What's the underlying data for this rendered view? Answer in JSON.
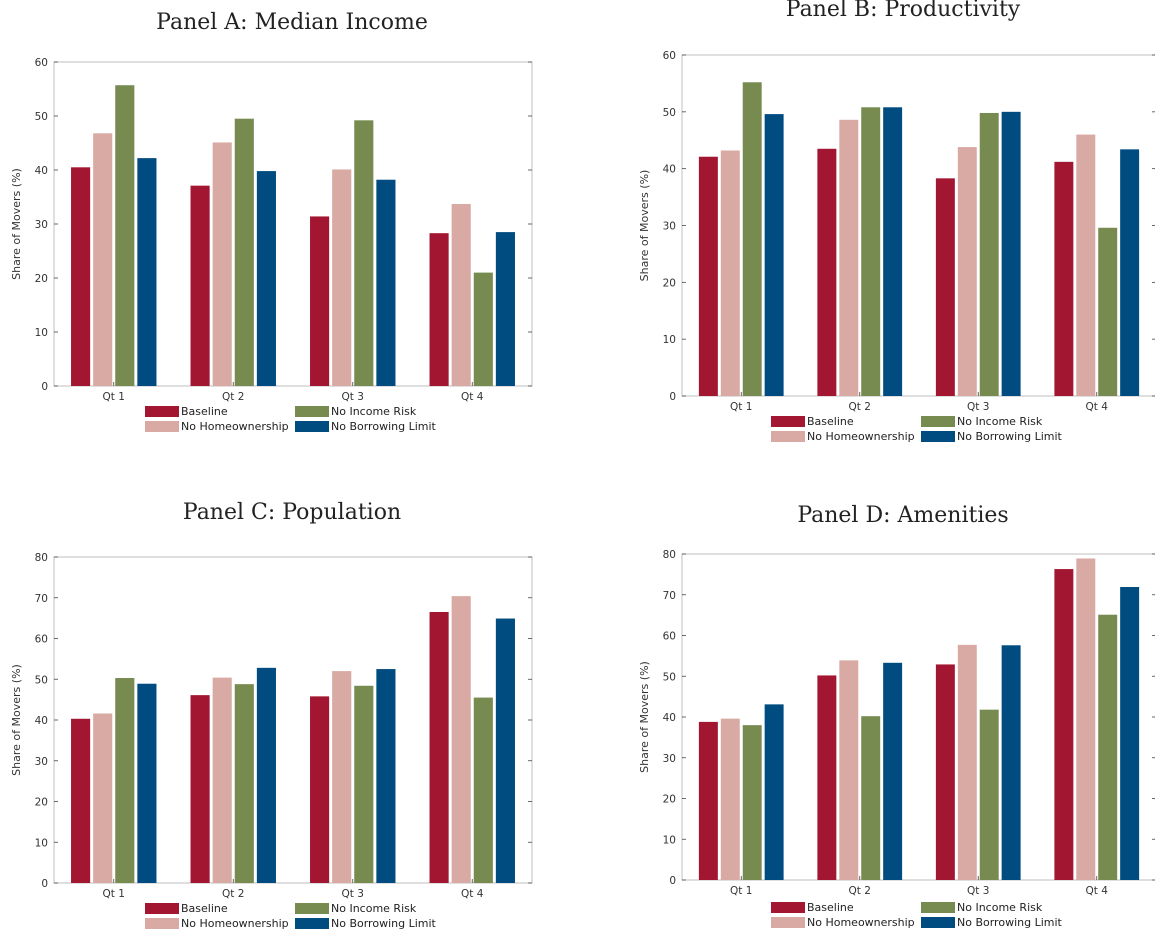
{
  "colors": {
    "Baseline": "#a31632",
    "No Homeownership": "#d8aaa3",
    "No Income Risk": "#778a50",
    "No Borrowing Limit": "#004c80"
  },
  "chart_data": [
    {
      "type": "bar",
      "title": "Panel A: Median Income",
      "ylabel": "Share of Movers (%)",
      "xlabel": "",
      "categories": [
        "Qt 1",
        "Qt 2",
        "Qt 3",
        "Qt 4"
      ],
      "ylim": [
        0,
        60
      ],
      "yticks": [
        0,
        10,
        20,
        30,
        40,
        50,
        60
      ],
      "series": [
        {
          "name": "Baseline",
          "values": [
            40.5,
            37.1,
            31.4,
            28.3
          ]
        },
        {
          "name": "No Homeownership",
          "values": [
            46.8,
            45.1,
            40.1,
            33.7
          ]
        },
        {
          "name": "No Income Risk",
          "values": [
            55.7,
            49.5,
            49.2,
            21.0
          ]
        },
        {
          "name": "No Borrowing Limit",
          "values": [
            42.2,
            39.8,
            38.2,
            28.5
          ]
        }
      ],
      "legend": {
        "position": "bottom"
      }
    },
    {
      "type": "bar",
      "title": "Panel B: Productivity",
      "ylabel": "Share of Movers (%)",
      "xlabel": "",
      "categories": [
        "Qt 1",
        "Qt 2",
        "Qt 3",
        "Qt 4"
      ],
      "ylim": [
        0,
        60
      ],
      "yticks": [
        0,
        10,
        20,
        30,
        40,
        50,
        60
      ],
      "series": [
        {
          "name": "Baseline",
          "values": [
            42.1,
            43.5,
            38.3,
            41.2
          ]
        },
        {
          "name": "No Homeownership",
          "values": [
            43.2,
            48.6,
            43.8,
            46.0
          ]
        },
        {
          "name": "No Income Risk",
          "values": [
            55.2,
            50.8,
            49.8,
            29.6
          ]
        },
        {
          "name": "No Borrowing Limit",
          "values": [
            49.6,
            50.8,
            50.0,
            43.4
          ]
        }
      ],
      "legend": {
        "position": "bottom"
      }
    },
    {
      "type": "bar",
      "title": "Panel C: Population",
      "ylabel": "Share of Movers (%)",
      "xlabel": "",
      "categories": [
        "Qt 1",
        "Qt 2",
        "Qt 3",
        "Qt 4"
      ],
      "ylim": [
        0,
        80
      ],
      "yticks": [
        0,
        10,
        20,
        30,
        40,
        50,
        60,
        70,
        80
      ],
      "series": [
        {
          "name": "Baseline",
          "values": [
            40.3,
            46.1,
            45.8,
            66.5
          ]
        },
        {
          "name": "No Homeownership",
          "values": [
            41.6,
            50.4,
            52.0,
            70.4
          ]
        },
        {
          "name": "No Income Risk",
          "values": [
            50.3,
            48.8,
            48.4,
            45.5
          ]
        },
        {
          "name": "No Borrowing Limit",
          "values": [
            48.9,
            52.8,
            52.5,
            64.9
          ]
        }
      ],
      "legend": {
        "position": "bottom"
      }
    },
    {
      "type": "bar",
      "title": "Panel D: Amenities",
      "ylabel": "Share of Movers (%)",
      "xlabel": "",
      "categories": [
        "Qt 1",
        "Qt 2",
        "Qt 3",
        "Qt 4"
      ],
      "ylim": [
        0,
        80
      ],
      "yticks": [
        0,
        10,
        20,
        30,
        40,
        50,
        60,
        70,
        80
      ],
      "series": [
        {
          "name": "Baseline",
          "values": [
            38.8,
            50.2,
            52.9,
            76.3
          ]
        },
        {
          "name": "No Homeownership",
          "values": [
            39.6,
            53.9,
            57.7,
            78.9
          ]
        },
        {
          "name": "No Income Risk",
          "values": [
            38.0,
            40.2,
            41.8,
            65.1
          ]
        },
        {
          "name": "No Borrowing Limit",
          "values": [
            43.1,
            53.3,
            57.6,
            71.9
          ]
        }
      ],
      "legend": {
        "position": "bottom"
      }
    }
  ]
}
